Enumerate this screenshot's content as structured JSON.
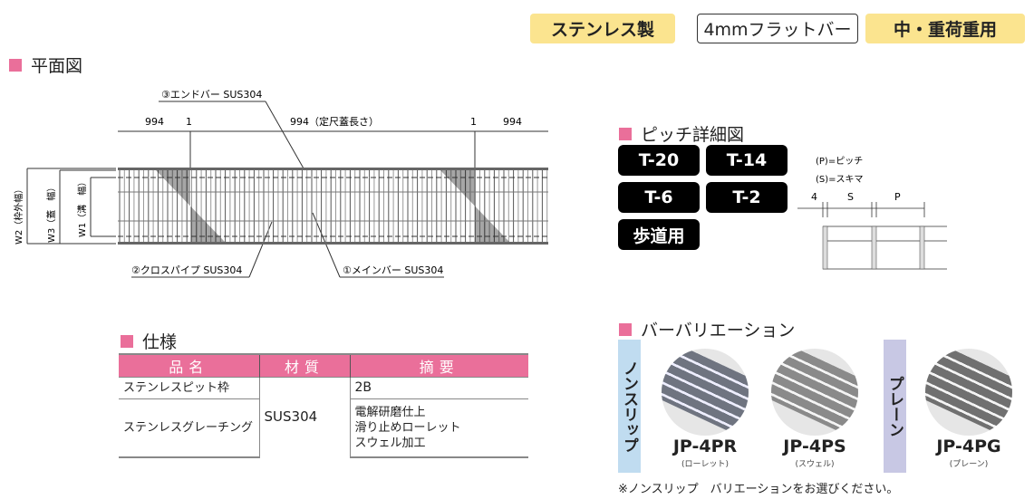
{
  "tags": [
    "ステンレス製",
    "4mmフラットバー",
    "中・重荷重用"
  ],
  "plan": {
    "title": "平面図",
    "end_bar": "③エンドバー SUS304",
    "cross_pipe": "②クロスパイプ SUS304",
    "main_bar": "①メインバー SUS304",
    "dim_left": "994",
    "dim_one_left": "1",
    "dim_center": "994（定尺蓋長さ）",
    "dim_one_right": "1",
    "dim_right": "994",
    "w2": "W2（枠外幅）",
    "w3": "W3（蓋　幅）",
    "w1": "W1（溝　幅）"
  },
  "pitch": {
    "title": "ピッチ詳細図",
    "buttons": [
      "T-20",
      "T-14",
      "T-6",
      "T-2",
      "歩道用"
    ],
    "legend_p": "(P)=ピッチ",
    "legend_s": "(S)=スキマ",
    "dim_4": "4",
    "dim_s": "S",
    "dim_p": "P"
  },
  "spec": {
    "title": "仕様",
    "headers": [
      "品名",
      "材質",
      "摘要"
    ],
    "rows": [
      {
        "name": "ステンレスピット枠",
        "note": "2B"
      },
      {
        "name": "ステンレスグレーチング",
        "note": [
          "電解研磨仕上",
          "滑り止めローレット",
          "スウェル加工"
        ]
      }
    ],
    "material": "SUS304"
  },
  "variation": {
    "title": "バーバリエーション",
    "nonslip_label": "ノンスリップ",
    "plain_label": "プレーン",
    "items": [
      {
        "code": "JP-4PR",
        "sub": "(ローレット)"
      },
      {
        "code": "JP-4PS",
        "sub": "(スウェル)"
      },
      {
        "code": "JP-4PG",
        "sub": "(プレーン)"
      }
    ],
    "note": "※ノンスリップ　バリエーションをお選びください。"
  },
  "colors": {
    "accent": "#ea6f9a",
    "tag": "#fbe48f",
    "nonslip": "#c0dcf0",
    "plain": "#c8c8e4"
  }
}
